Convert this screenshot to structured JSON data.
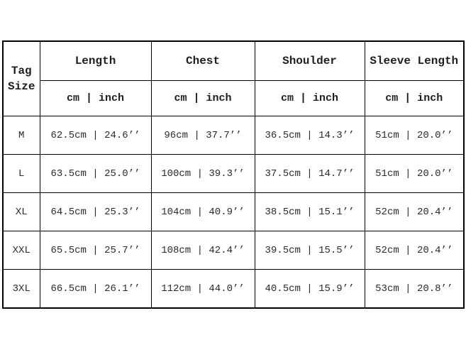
{
  "size_chart": {
    "corner_header": "Tag Size",
    "columns": [
      {
        "label": "Length",
        "unit": "cm | inch"
      },
      {
        "label": "Chest",
        "unit": "cm | inch"
      },
      {
        "label": "Shoulder",
        "unit": "cm | inch"
      },
      {
        "label": "Sleeve Length",
        "unit": "cm | inch"
      }
    ],
    "rows": [
      {
        "size": "M",
        "length": "62.5cm | 24.6’’",
        "chest": "96cm | 37.7’’",
        "shoulder": "36.5cm | 14.3’’",
        "sleeve_length": "51cm | 20.0’’"
      },
      {
        "size": "L",
        "length": "63.5cm | 25.0’’",
        "chest": "100cm | 39.3’’",
        "shoulder": "37.5cm | 14.7’’",
        "sleeve_length": "51cm | 20.0’’"
      },
      {
        "size": "XL",
        "length": "64.5cm | 25.3’’",
        "chest": "104cm | 40.9’’",
        "shoulder": "38.5cm | 15.1’’",
        "sleeve_length": "52cm | 20.4’’"
      },
      {
        "size": "XXL",
        "length": "65.5cm | 25.7’’",
        "chest": "108cm | 42.4’’",
        "shoulder": "39.5cm | 15.5’’",
        "sleeve_length": "52cm | 20.4’’"
      },
      {
        "size": "3XL",
        "length": "66.5cm | 26.1’’",
        "chest": "112cm | 44.0’’",
        "shoulder": "40.5cm | 15.9’’",
        "sleeve_length": "53cm | 20.8’’"
      }
    ],
    "colors": {
      "border": "#000000",
      "text": "#2b2b2b",
      "background": "#ffffff"
    }
  }
}
